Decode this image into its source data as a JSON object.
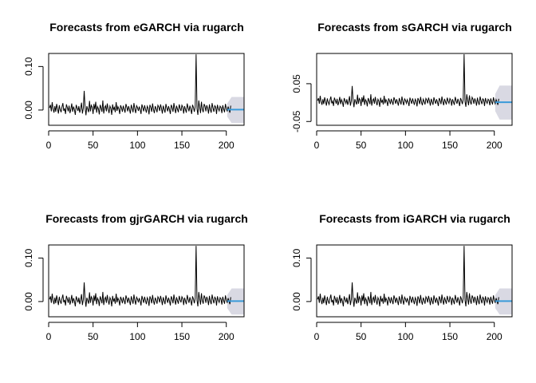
{
  "colors": {
    "series": "#000000",
    "forecast": "#3a9ad9",
    "band": "#d9d9e3",
    "axis": "#000000"
  },
  "chart_data": [
    {
      "type": "line",
      "title": "Forecasts from eGARCH via rugarch",
      "xlabel": "",
      "ylabel": "",
      "xlim": [
        0,
        220
      ],
      "ylim": [
        -0.035,
        0.13
      ],
      "x_ticks": [
        0,
        50,
        100,
        150,
        200
      ],
      "x_tick_labels": [
        "0",
        "50",
        "100",
        "150",
        "200"
      ],
      "y_ticks": [
        0.0,
        0.1
      ],
      "y_tick_labels": [
        "0.00",
        "0.10"
      ],
      "forecast": {
        "x_start": 201,
        "x_end": 220,
        "mean": 0.001,
        "band_upper": 0.03,
        "band_lower": -0.03
      },
      "grid": false
    },
    {
      "type": "line",
      "title": "Forecasts from sGARCH via rugarch",
      "xlabel": "",
      "ylabel": "",
      "xlim": [
        0,
        220
      ],
      "ylim": [
        -0.06,
        0.13
      ],
      "x_ticks": [
        0,
        50,
        100,
        150,
        200
      ],
      "x_tick_labels": [
        "0",
        "50",
        "100",
        "150",
        "200"
      ],
      "y_ticks": [
        -0.05,
        0.05
      ],
      "y_tick_labels": [
        "-0.05",
        "0.05"
      ],
      "forecast": {
        "x_start": 201,
        "x_end": 220,
        "mean": 0.001,
        "band_upper": 0.045,
        "band_lower": -0.045
      },
      "grid": false
    },
    {
      "type": "line",
      "title": "Forecasts from gjrGARCH via rugarch",
      "xlabel": "",
      "ylabel": "",
      "xlim": [
        0,
        220
      ],
      "ylim": [
        -0.035,
        0.13
      ],
      "x_ticks": [
        0,
        50,
        100,
        150,
        200
      ],
      "x_tick_labels": [
        "0",
        "50",
        "100",
        "150",
        "200"
      ],
      "y_ticks": [
        0.0,
        0.1
      ],
      "y_tick_labels": [
        "0.00",
        "0.10"
      ],
      "forecast": {
        "x_start": 201,
        "x_end": 220,
        "mean": 0.001,
        "band_upper": 0.03,
        "band_lower": -0.03
      },
      "grid": false
    },
    {
      "type": "line",
      "title": "Forecasts from iGARCH via rugarch",
      "xlabel": "",
      "ylabel": "",
      "xlim": [
        0,
        220
      ],
      "ylim": [
        -0.035,
        0.13
      ],
      "x_ticks": [
        0,
        50,
        100,
        150,
        200
      ],
      "x_tick_labels": [
        "0",
        "50",
        "100",
        "150",
        "200"
      ],
      "y_ticks": [
        0.0,
        0.1
      ],
      "y_tick_labels": [
        "0.00",
        "0.10"
      ],
      "forecast": {
        "x_start": 201,
        "x_end": 220,
        "mean": 0.001,
        "band_upper": 0.03,
        "band_lower": -0.03
      },
      "grid": false
    }
  ],
  "series_values": [
    0.005,
    0.012,
    -0.003,
    0.018,
    0.002,
    -0.006,
    0.009,
    -0.004,
    0.014,
    0.003,
    -0.008,
    0.011,
    0.001,
    -0.005,
    0.007,
    0.016,
    -0.002,
    0.004,
    -0.009,
    0.013,
    0.006,
    -0.003,
    0.01,
    -0.007,
    0.002,
    0.015,
    -0.004,
    0.008,
    0.001,
    -0.011,
    0.012,
    0.005,
    -0.002,
    0.009,
    -0.006,
    0.003,
    0.017,
    -0.008,
    0.004,
    0.044,
    0.006,
    -0.012,
    0.009,
    0.002,
    -0.005,
    0.021,
    -0.003,
    0.011,
    0.007,
    -0.009,
    0.014,
    0.001,
    0.019,
    -0.006,
    0.008,
    0.003,
    -0.01,
    0.012,
    0.005,
    -0.004,
    0.022,
    -0.008,
    0.006,
    0.01,
    -0.003,
    0.015,
    0.002,
    -0.007,
    0.009,
    0.004,
    -0.011,
    0.013,
    0.001,
    0.006,
    -0.005,
    0.018,
    -0.002,
    0.008,
    0.003,
    -0.009,
    0.011,
    0.005,
    -0.004,
    0.01,
    0.002,
    -0.006,
    0.014,
    0.007,
    -0.003,
    0.009,
    0.001,
    -0.008,
    0.012,
    0.004,
    -0.005,
    0.016,
    0.003,
    -0.007,
    0.01,
    0.006,
    -0.002,
    0.008,
    0.001,
    -0.009,
    0.013,
    0.005,
    -0.003,
    0.011,
    0.002,
    -0.006,
    0.009,
    0.004,
    -0.01,
    0.012,
    0.006,
    -0.004,
    0.015,
    0.001,
    -0.007,
    0.009,
    0.003,
    -0.005,
    0.011,
    0.007,
    -0.002,
    0.013,
    0.004,
    -0.008,
    0.01,
    0.002,
    -0.006,
    0.014,
    0.005,
    -0.003,
    0.009,
    0.001,
    -0.009,
    0.012,
    0.006,
    -0.004,
    0.016,
    0.003,
    -0.007,
    0.01,
    0.002,
    -0.005,
    0.013,
    0.004,
    -0.002,
    0.011,
    0.007,
    -0.008,
    0.009,
    0.001,
    -0.006,
    0.015,
    0.005,
    -0.003,
    0.01,
    0.002,
    -0.009,
    0.012,
    0.006,
    -0.004,
    0.008,
    0.128,
    0.003,
    -0.011,
    0.022,
    0.006,
    -0.007,
    0.019,
    0.002,
    -0.005,
    0.014,
    0.009,
    -0.003,
    0.011,
    0.004,
    -0.008,
    0.013,
    0.001,
    -0.006,
    0.016,
    0.005,
    -0.004,
    0.01,
    0.007,
    -0.009,
    0.012,
    0.003,
    -0.002,
    0.009,
    0.006,
    -0.007,
    0.011,
    0.002,
    -0.005,
    0.014,
    0.004,
    -0.003,
    0.008,
    0.001,
    -0.006,
    0.01
  ]
}
